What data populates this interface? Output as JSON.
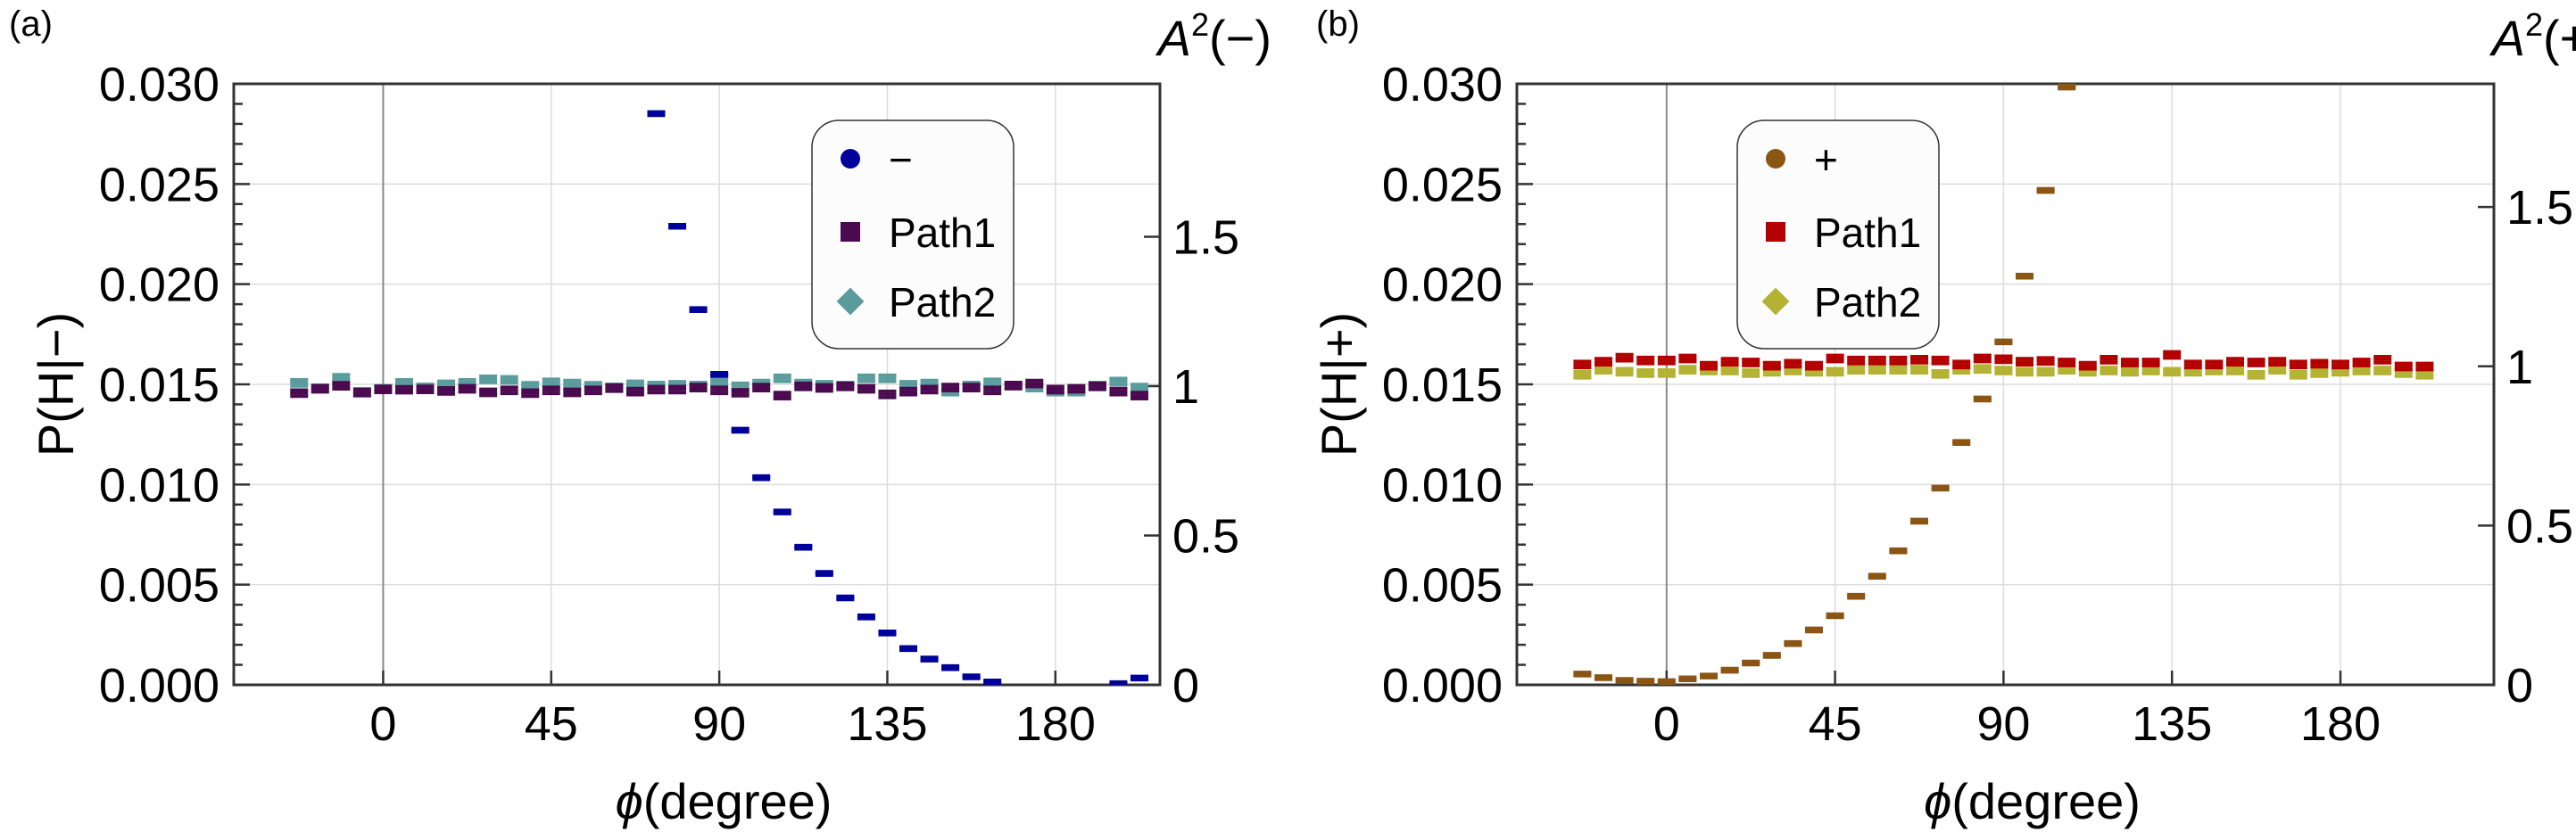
{
  "chart_data": [
    {
      "type": "scatter",
      "panel_label": "(a)",
      "ylabel": "P(H|−)",
      "xlabel_symbol": "ϕ",
      "xlabel_unit": "(degree)",
      "xlim": [
        -40,
        208
      ],
      "ylim": [
        0,
        0.03
      ],
      "grid": true,
      "x_ticks": [
        0,
        45,
        90,
        135,
        180
      ],
      "x_tick_labels": [
        "0",
        "45",
        "90",
        "135",
        "180"
      ],
      "y_ticks": [
        0,
        0.005,
        0.01,
        0.015,
        0.02,
        0.025,
        0.03
      ],
      "y_tick_labels": [
        "0.000",
        "0.005",
        "0.010",
        "0.015",
        "0.020",
        "0.025",
        "0.030"
      ],
      "right_axis": {
        "symbol": "A",
        "power": "2",
        "arg": "(−)",
        "ticks": [
          0,
          0.5,
          1,
          1.5
        ],
        "tick_labels": [
          "0",
          "0.5",
          "1",
          "1.5"
        ],
        "left_value_per_unit": 0.01491
      },
      "legend": {
        "placement": "top-right",
        "entries": [
          {
            "label": "−",
            "marker": "circle",
            "color": "#00009a"
          },
          {
            "label": "Path1",
            "marker": "square",
            "color": "#4b0a50"
          },
          {
            "label": "Path2",
            "marker": "diamond",
            "color": "#5a9c9c"
          }
        ]
      },
      "series": [
        {
          "name": "Path2",
          "color": "#5a9c9c",
          "error": 0.00015,
          "x": [
            -22.5,
            -16.875,
            -11.25,
            -5.625,
            0,
            5.625,
            11.25,
            16.875,
            22.5,
            28.125,
            33.75,
            39.375,
            45,
            50.625,
            56.25,
            61.875,
            67.5,
            73.125,
            78.75,
            84.375,
            90,
            95.625,
            101.25,
            106.875,
            112.5,
            118.125,
            123.75,
            129.375,
            135,
            140.625,
            146.25,
            151.875,
            157.5,
            163.125,
            168.75,
            174.375,
            180,
            185.625,
            191.25,
            196.875,
            202.5
          ],
          "y": [
            0.01507,
            0.01481,
            0.01533,
            0.01463,
            0.01478,
            0.01507,
            0.01485,
            0.015,
            0.01507,
            0.01525,
            0.01522,
            0.01493,
            0.0151,
            0.01504,
            0.01493,
            0.01485,
            0.015,
            0.01494,
            0.01498,
            0.01494,
            0.01514,
            0.0149,
            0.01504,
            0.0153,
            0.01504,
            0.01498,
            0.01494,
            0.0153,
            0.0153,
            0.01498,
            0.01504,
            0.01464,
            0.01494,
            0.0151,
            0.01494,
            0.01484,
            0.01464,
            0.01464,
            0.01494,
            0.01514,
            0.01484
          ]
        },
        {
          "name": "Path1",
          "color": "#4b0a50",
          "error": 0.00015,
          "x": [
            -22.5,
            -16.875,
            -11.25,
            -5.625,
            0,
            5.625,
            11.25,
            16.875,
            22.5,
            28.125,
            33.75,
            39.375,
            45,
            50.625,
            56.25,
            61.875,
            67.5,
            73.125,
            78.75,
            84.375,
            90,
            95.625,
            101.25,
            106.875,
            112.5,
            118.125,
            123.75,
            129.375,
            135,
            140.625,
            146.25,
            151.875,
            157.5,
            163.125,
            168.75,
            174.375,
            180,
            185.625,
            191.25,
            196.875,
            202.5
          ],
          "y": [
            0.01456,
            0.01478,
            0.01493,
            0.01459,
            0.01475,
            0.01473,
            0.01475,
            0.01467,
            0.01478,
            0.0146,
            0.0147,
            0.01456,
            0.0147,
            0.0146,
            0.0147,
            0.01481,
            0.01464,
            0.01474,
            0.01474,
            0.01484,
            0.0147,
            0.01458,
            0.01484,
            0.01444,
            0.0149,
            0.01482,
            0.0149,
            0.01478,
            0.0145,
            0.01464,
            0.01474,
            0.01484,
            0.01484,
            0.0147,
            0.01494,
            0.01504,
            0.01474,
            0.01478,
            0.0149,
            0.01464,
            0.01444
          ]
        },
        {
          "name": "−",
          "color": "#00009a",
          "error": 8e-05,
          "x": [
            73.125,
            78.75,
            84.375,
            90,
            95.625,
            101.25,
            106.875,
            112.5,
            118.125,
            123.75,
            129.375,
            135,
            140.625,
            146.25,
            151.875,
            157.5,
            163.125,
            196.875,
            202.5
          ],
          "y": [
            0.02851,
            0.02289,
            0.01873,
            0.0155,
            0.01271,
            0.01034,
            0.00863,
            0.00687,
            0.00556,
            0.00434,
            0.00339,
            0.00259,
            0.00181,
            0.00129,
            0.00086,
            0.0004,
            0.00014,
            6e-05,
            0.00034
          ]
        }
      ]
    },
    {
      "type": "scatter",
      "panel_label": "(b)",
      "ylabel": "P(H|+)",
      "xlabel_symbol": "ϕ",
      "xlabel_unit": "(degree)",
      "xlim": [
        -40,
        221
      ],
      "ylim": [
        0,
        0.03
      ],
      "grid": true,
      "x_ticks": [
        0,
        45,
        90,
        135,
        180
      ],
      "x_tick_labels": [
        "0",
        "45",
        "90",
        "135",
        "180"
      ],
      "y_ticks": [
        0,
        0.005,
        0.01,
        0.015,
        0.02,
        0.025,
        0.03
      ],
      "y_tick_labels": [
        "0.000",
        "0.005",
        "0.010",
        "0.015",
        "0.020",
        "0.025",
        "0.030"
      ],
      "right_axis": {
        "symbol": "A",
        "power": "2",
        "arg": "(+)",
        "ticks": [
          0,
          0.5,
          1,
          1.5
        ],
        "tick_labels": [
          "0",
          "0.5",
          "1",
          "1.5"
        ],
        "left_value_per_unit": 0.0159
      },
      "legend": {
        "placement": "top-center",
        "entries": [
          {
            "label": "+",
            "marker": "circle",
            "color": "#8b5514"
          },
          {
            "label": "Path1",
            "marker": "square",
            "color": "#b30000"
          },
          {
            "label": "Path2",
            "marker": "diamond",
            "color": "#b4b232"
          }
        ]
      },
      "series": [
        {
          "name": "Path2",
          "color": "#b4b232",
          "error": 0.00015,
          "x": [
            -22.5,
            -16.875,
            -11.25,
            -5.625,
            0,
            5.625,
            11.25,
            16.875,
            22.5,
            28.125,
            33.75,
            39.375,
            45,
            50.625,
            56.25,
            61.875,
            67.5,
            73.125,
            78.75,
            84.375,
            90,
            95.625,
            101.25,
            106.875,
            112.5,
            118.125,
            123.75,
            129.375,
            135,
            140.625,
            146.25,
            151.875,
            157.5,
            163.125,
            168.75,
            174.375,
            180,
            185.625,
            191.25,
            196.875,
            202.5
          ],
          "y": [
            0.01548,
            0.01573,
            0.01563,
            0.01556,
            0.01556,
            0.01573,
            0.01569,
            0.01569,
            0.01556,
            0.01563,
            0.01569,
            0.01563,
            0.01563,
            0.01573,
            0.01573,
            0.01573,
            0.01573,
            0.01552,
            0.01573,
            0.01577,
            0.01569,
            0.01563,
            0.01563,
            0.01573,
            0.01563,
            0.01569,
            0.01563,
            0.01569,
            0.01563,
            0.01563,
            0.01569,
            0.01569,
            0.01548,
            0.01573,
            0.01548,
            0.01556,
            0.01563,
            0.01569,
            0.01569,
            0.01556,
            0.01548
          ]
        },
        {
          "name": "Path1",
          "color": "#b30000",
          "error": 0.00015,
          "x": [
            -22.5,
            -16.875,
            -11.25,
            -5.625,
            0,
            5.625,
            11.25,
            16.875,
            22.5,
            28.125,
            33.75,
            39.375,
            45,
            50.625,
            56.25,
            61.875,
            67.5,
            73.125,
            78.75,
            84.375,
            90,
            95.625,
            101.25,
            106.875,
            112.5,
            118.125,
            123.75,
            129.375,
            135,
            140.625,
            146.25,
            151.875,
            157.5,
            163.125,
            168.75,
            174.375,
            180,
            185.625,
            191.25,
            196.875,
            202.5
          ],
          "y": [
            0.01599,
            0.01613,
            0.01633,
            0.01619,
            0.01619,
            0.01629,
            0.01593,
            0.01613,
            0.01609,
            0.01593,
            0.01603,
            0.01593,
            0.01629,
            0.01619,
            0.01619,
            0.01619,
            0.01623,
            0.01619,
            0.01599,
            0.01629,
            0.01625,
            0.01613,
            0.01617,
            0.01609,
            0.01593,
            0.01623,
            0.01609,
            0.01609,
            0.01647,
            0.01599,
            0.01599,
            0.01613,
            0.01609,
            0.01613,
            0.01599,
            0.01603,
            0.01599,
            0.01609,
            0.01623,
            0.01589,
            0.01589
          ]
        },
        {
          "name": "+",
          "color": "#8b5514",
          "error": 8e-05,
          "x": [
            -22.5,
            -16.875,
            -11.25,
            -5.625,
            0,
            5.625,
            11.25,
            16.875,
            22.5,
            28.125,
            33.75,
            39.375,
            45,
            50.625,
            56.25,
            61.875,
            67.5,
            73.125,
            78.75,
            84.375,
            90,
            95.625,
            101.25,
            106.875
          ],
          "y": [
            0.00054,
            0.00036,
            0.00022,
            0.00018,
            0.00016,
            0.0003,
            0.00044,
            0.00073,
            0.00109,
            0.00147,
            0.00206,
            0.00274,
            0.00345,
            0.00442,
            0.00542,
            0.00669,
            0.00817,
            0.00982,
            0.0121,
            0.01427,
            0.01712,
            0.0204,
            0.02468,
            0.02984
          ]
        }
      ]
    }
  ]
}
